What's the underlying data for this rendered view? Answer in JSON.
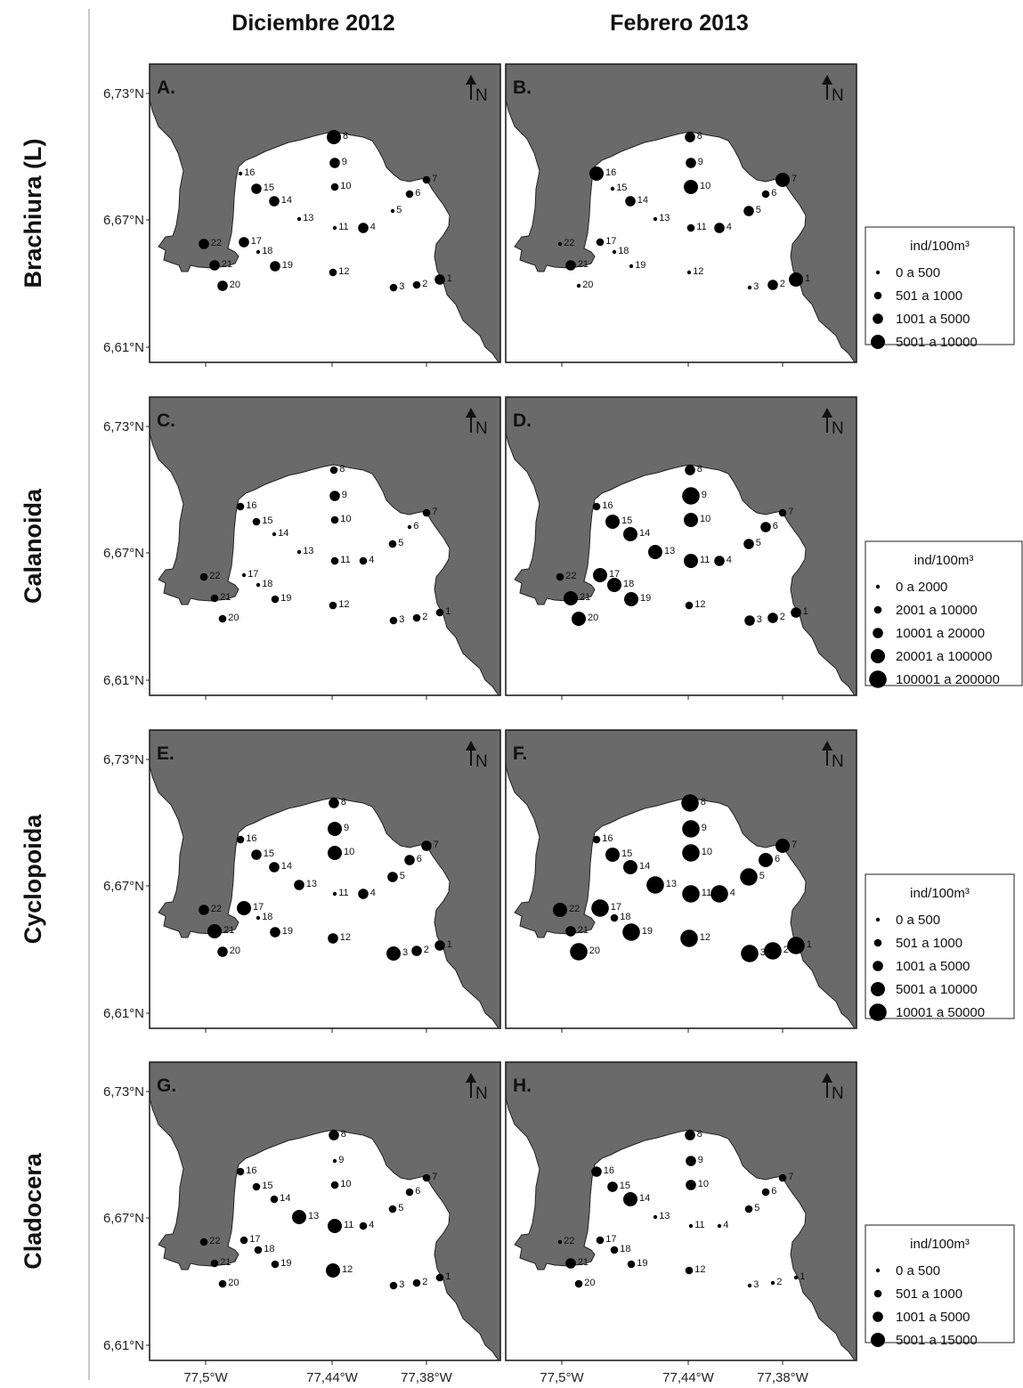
{
  "columns": [
    "Diciembre 2012",
    "Febrero 2013"
  ],
  "lat_labels": [
    "6,73°N",
    "6,67°N",
    "6,61°N"
  ],
  "lon_labels": [
    "77,5°W",
    "77,44°W",
    "77,38°W"
  ],
  "north_label": "N",
  "stations": [
    "1",
    "2",
    "3",
    "4",
    "5",
    "6",
    "7",
    "8",
    "9",
    "10",
    "11",
    "12",
    "13",
    "14",
    "15",
    "16",
    "17",
    "18",
    "19",
    "20",
    "21",
    "22"
  ],
  "rows": [
    {
      "taxon": "Brachiura (L)",
      "panels": [
        {
          "letter": "A.",
          "sizes": [
            3,
            2,
            2,
            3,
            1,
            2,
            2,
            4,
            3,
            2,
            1,
            2,
            1,
            3,
            3,
            1,
            3,
            1,
            3,
            3,
            3,
            3
          ]
        },
        {
          "letter": "B.",
          "sizes": [
            4,
            3,
            1,
            3,
            3,
            2,
            4,
            3,
            3,
            4,
            2,
            1,
            1,
            3,
            1,
            4,
            2,
            1,
            1,
            1,
            3,
            1
          ]
        }
      ],
      "legend": {
        "title": "ind/100m³",
        "items": [
          "0 a 500",
          "501 a 1000",
          "1001 a 5000",
          "5001 a 10000"
        ]
      }
    },
    {
      "taxon": "Calanoida",
      "panels": [
        {
          "letter": "C.",
          "sizes": [
            2,
            2,
            2,
            2,
            2,
            1,
            2,
            2,
            3,
            2,
            2,
            2,
            1,
            1,
            2,
            2,
            1,
            1,
            2,
            2,
            2,
            2
          ]
        },
        {
          "letter": "D.",
          "sizes": [
            3,
            3,
            3,
            3,
            3,
            3,
            2,
            3,
            5,
            4,
            4,
            2,
            4,
            4,
            4,
            2,
            4,
            4,
            4,
            4,
            4,
            2
          ]
        }
      ],
      "legend": {
        "title": "ind/100m³",
        "items": [
          "0 a 2000",
          "2001 a 10000",
          "10001 a 20000",
          "20001 a 100000",
          "100001 a 200000"
        ]
      }
    },
    {
      "taxon": "Cyclopoida",
      "panels": [
        {
          "letter": "E.",
          "sizes": [
            3,
            3,
            4,
            3,
            3,
            3,
            3,
            3,
            4,
            4,
            1,
            3,
            3,
            3,
            3,
            2,
            4,
            1,
            3,
            3,
            4,
            3
          ]
        },
        {
          "letter": "F.",
          "sizes": [
            5,
            5,
            5,
            5,
            5,
            4,
            4,
            5,
            5,
            5,
            5,
            5,
            5,
            4,
            4,
            2,
            5,
            2,
            5,
            5,
            3,
            4
          ]
        }
      ],
      "legend": {
        "title": "ind/100m³",
        "items": [
          "0 a 500",
          "501 a 1000",
          "1001 a 5000",
          "5001 a 10000",
          "10001 a 50000"
        ]
      }
    },
    {
      "taxon": "Cladocera",
      "panels": [
        {
          "letter": "G.",
          "sizes": [
            2,
            2,
            2,
            2,
            2,
            2,
            2,
            3,
            1,
            2,
            4,
            4,
            4,
            2,
            2,
            2,
            2,
            2,
            2,
            2,
            2,
            2
          ]
        },
        {
          "letter": "H.",
          "sizes": [
            1,
            1,
            1,
            1,
            2,
            2,
            2,
            3,
            3,
            3,
            1,
            2,
            1,
            4,
            3,
            3,
            2,
            2,
            2,
            2,
            3,
            1
          ]
        }
      ],
      "legend": {
        "title": "ind/100m³",
        "items": [
          "0 a 500",
          "501 a 1000",
          "1001 a 5000",
          "5001 a 15000"
        ]
      }
    }
  ]
}
